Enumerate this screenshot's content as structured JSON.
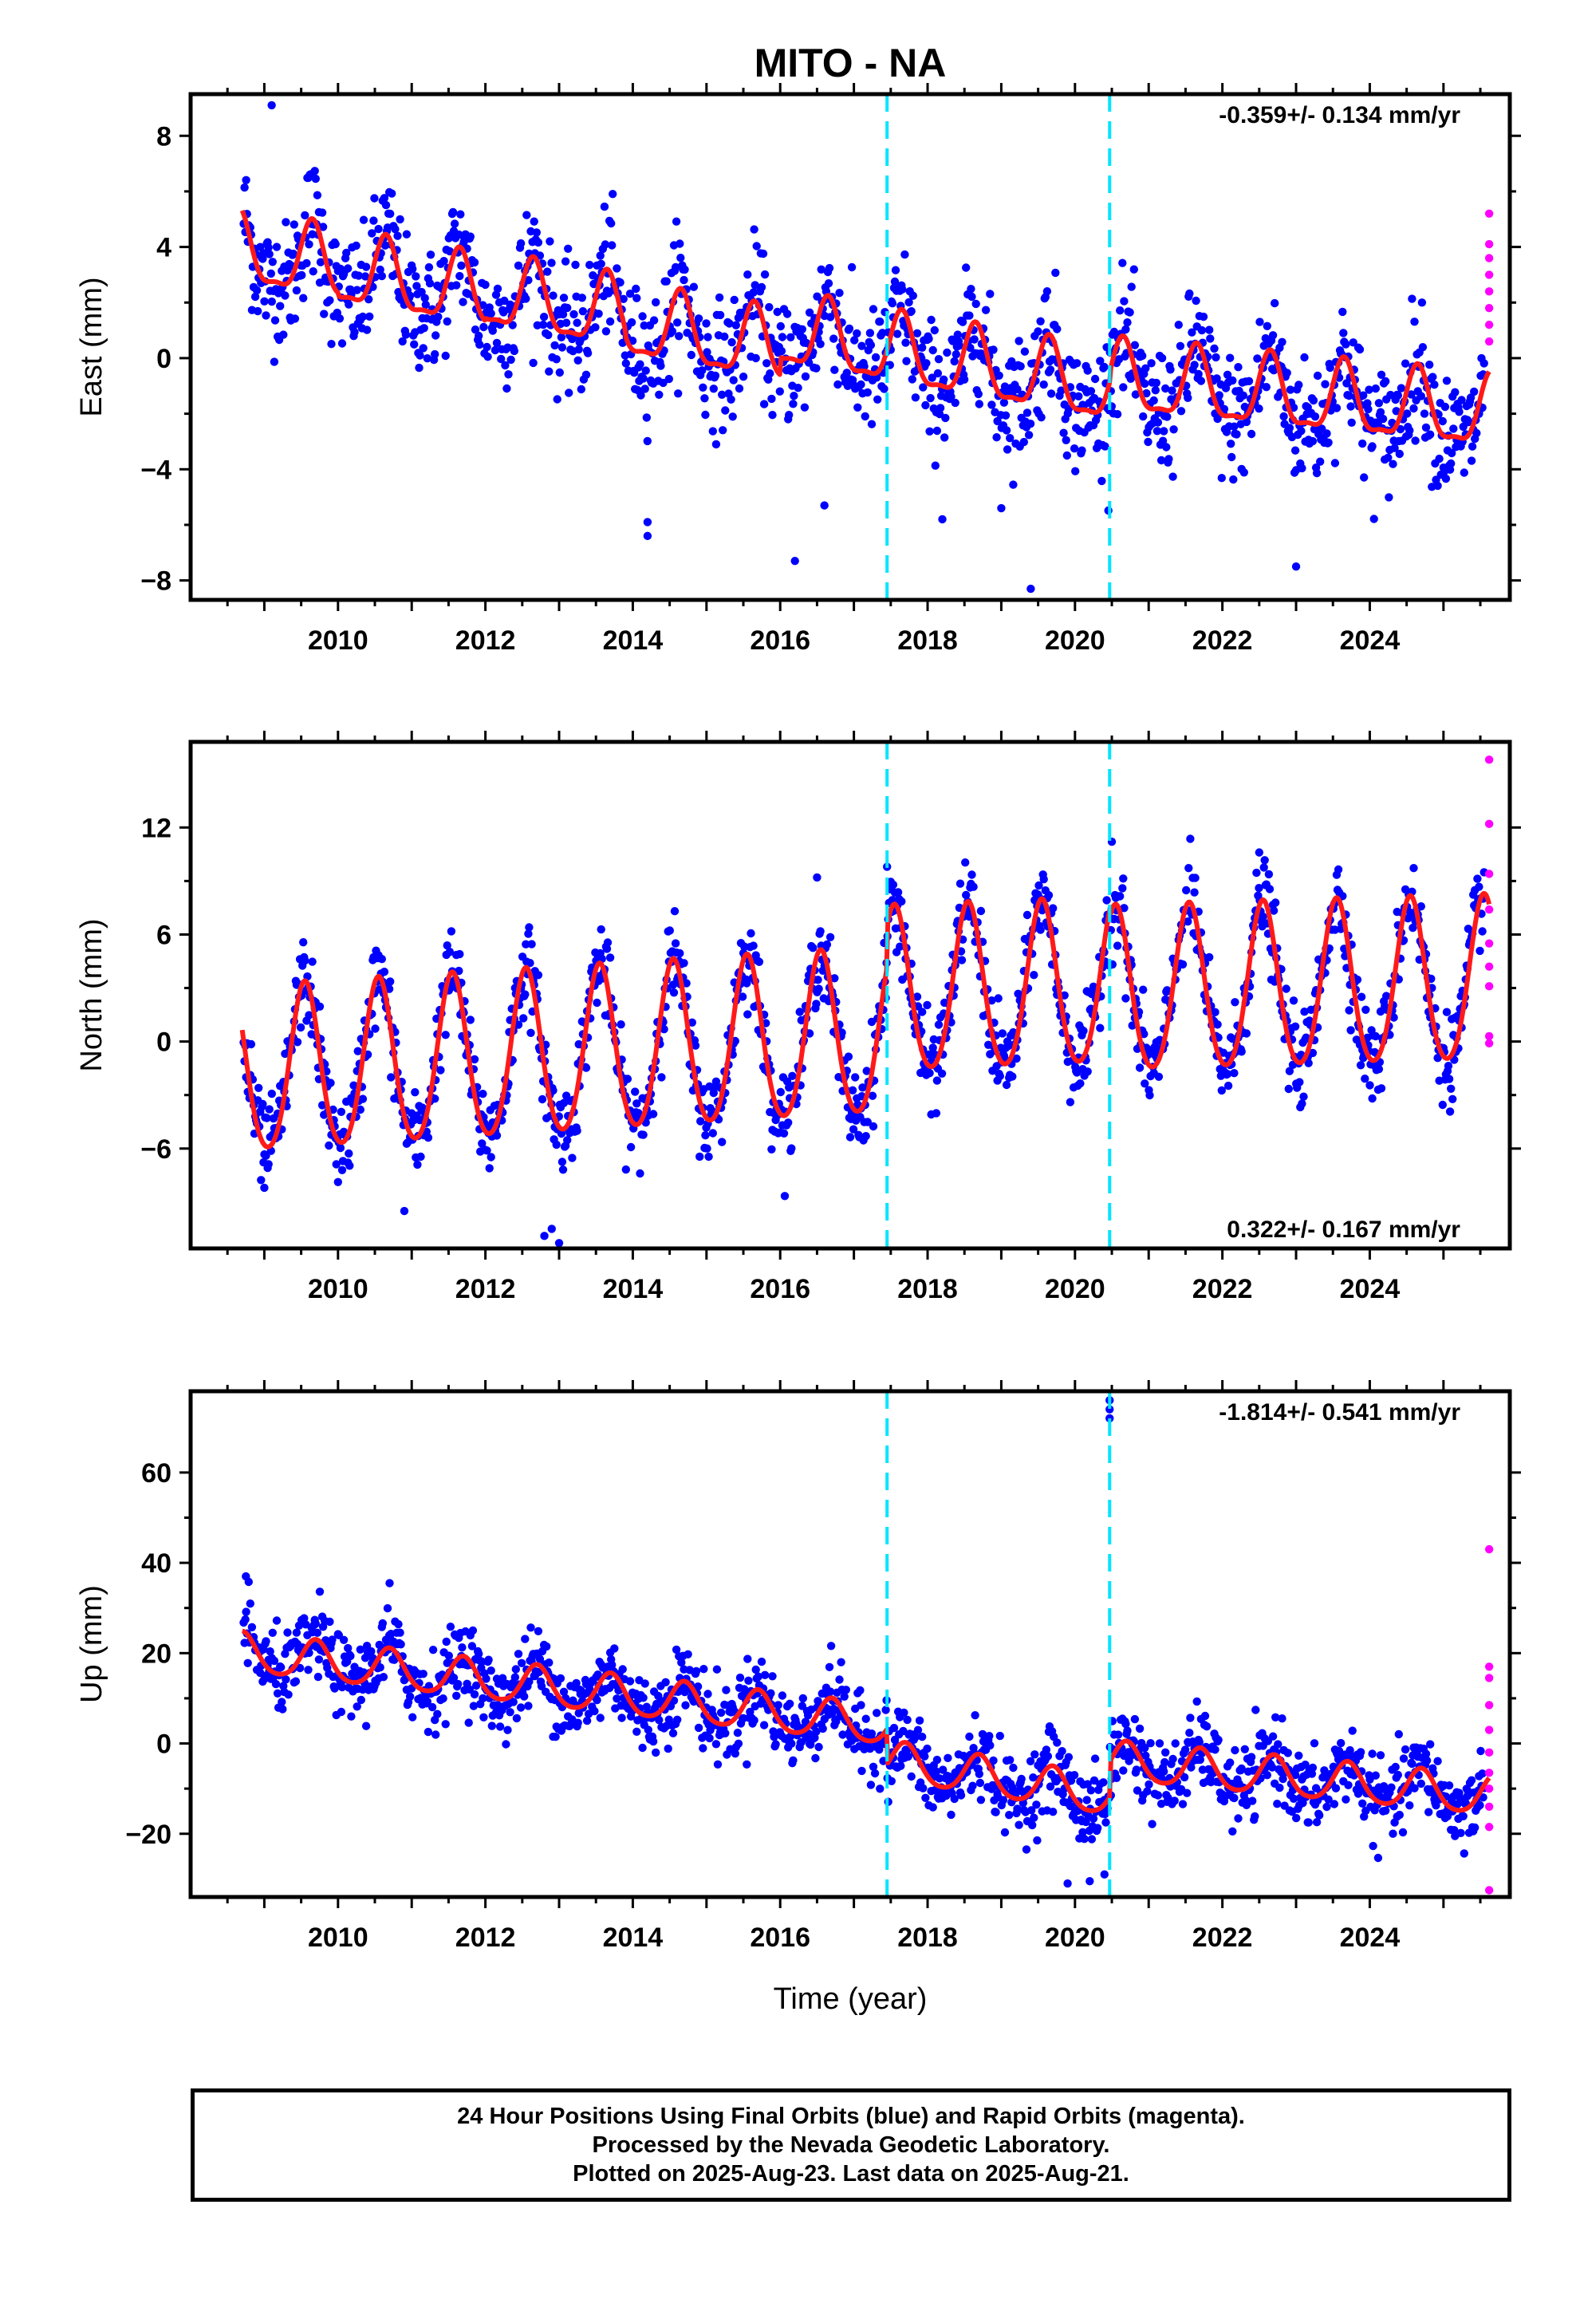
{
  "title": "MITO - NA",
  "colors": {
    "final": "#0000ff",
    "rapid": "#ff00ff",
    "model": "#ff1a1a",
    "event": "#00e5ff",
    "frame": "#000000"
  },
  "caption": {
    "line1": "24 Hour Positions Using Final Orbits (blue) and Rapid Orbits (magenta).",
    "line2": "Processed by the Nevada Geodetic Laboratory.",
    "line3": "Plotted on 2025-Aug-23. Last data on 2025-Aug-21."
  },
  "chart_data": [
    {
      "type": "scatter",
      "component": "East",
      "ylabel": "East (mm)",
      "xlabel": "",
      "xlim": [
        2008.0,
        2025.9
      ],
      "ylim": [
        -8.7,
        9.5
      ],
      "yticks": [
        -8,
        -4,
        0,
        4,
        8
      ],
      "yticklabels": [
        "−8",
        "−4",
        "0",
        "4",
        "8"
      ],
      "xticks": [
        2010,
        2012,
        2014,
        2016,
        2018,
        2020,
        2022,
        2024
      ],
      "rate_label": "-0.359+/- 0.134 mm/yr",
      "rate_position": "top-right",
      "events": [
        2017.45,
        2020.47
      ],
      "grid": false,
      "model": {
        "x_start": 2008.7,
        "x_end": 2025.62,
        "segments": [
          [
            2008.7,
            2010.0,
            3.8,
            -0.45
          ],
          [
            2010.0,
            2012.0,
            3.1,
            -0.45
          ],
          [
            2012.0,
            2013.9,
            2.3,
            -0.45
          ],
          [
            2013.9,
            2016.0,
            1.2,
            -0.45
          ],
          [
            2016.0,
            2017.45,
            0.9,
            -0.45
          ],
          [
            2017.45,
            2020.47,
            0.2,
            -0.45
          ],
          [
            2020.47,
            2025.62,
            -0.8,
            -0.25
          ]
        ],
        "annual_amp": 1.25,
        "semiannual_amp": 0.4,
        "annual_phase_peak": 0.65
      },
      "final_points": {
        "x_start": 2008.72,
        "x_end": 2025.55,
        "count": 1500,
        "scatter": 1.1,
        "outliers": [
          [
            2009.1,
            9.1
          ],
          [
            2014.2,
            -5.9
          ],
          [
            2014.2,
            -6.4
          ],
          [
            2016.2,
            -7.3
          ],
          [
            2019.4,
            -8.3
          ],
          [
            2023.0,
            -7.5
          ],
          [
            2019.0,
            -5.4
          ],
          [
            2016.6,
            -5.3
          ],
          [
            2018.2,
            -5.8
          ]
        ]
      },
      "rapid_points": [
        [
          2025.62,
          5.2
        ],
        [
          2025.62,
          4.1
        ],
        [
          2025.62,
          3.0
        ],
        [
          2025.62,
          2.4
        ],
        [
          2025.62,
          1.8
        ],
        [
          2025.62,
          1.2
        ],
        [
          2025.62,
          0.6
        ],
        [
          2025.62,
          3.6
        ]
      ]
    },
    {
      "type": "scatter",
      "component": "North",
      "ylabel": "North (mm)",
      "xlabel": "",
      "xlim": [
        2008.0,
        2025.9
      ],
      "ylim": [
        -11.6,
        16.8
      ],
      "yticks": [
        -6,
        0,
        6,
        12
      ],
      "yticklabels": [
        "−6",
        "0",
        "6",
        "12"
      ],
      "xticks": [
        2010,
        2012,
        2014,
        2016,
        2018,
        2020,
        2022,
        2024
      ],
      "rate_label": "0.322+/- 0.167 mm/yr",
      "rate_position": "bottom-right",
      "events": [
        2017.45,
        2020.47
      ],
      "grid": false,
      "model": {
        "x_start": 2008.7,
        "x_end": 2025.62,
        "segments": [
          [
            2008.7,
            2017.45,
            -1.9,
            0.25
          ],
          [
            2017.45,
            2020.47,
            2.6,
            0.15
          ],
          [
            2020.47,
            2025.62,
            2.6,
            0.12
          ]
        ],
        "annual_amp": 4.6,
        "semiannual_amp": 0.5,
        "annual_phase_peak": 0.55
      },
      "final_points": {
        "x_start": 2008.72,
        "x_end": 2025.55,
        "count": 1500,
        "scatter": 1.2,
        "outliers": [
          [
            2012.9,
            -10.5
          ],
          [
            2013.0,
            -11.3
          ],
          [
            2012.8,
            -10.9
          ],
          [
            2020.5,
            11.2
          ],
          [
            2017.45,
            9.8
          ],
          [
            2022.5,
            10.6
          ],
          [
            2009.0,
            -8.2
          ],
          [
            2010.9,
            -9.5
          ],
          [
            2016.5,
            9.2
          ]
        ]
      },
      "rapid_points": [
        [
          2025.62,
          15.8
        ],
        [
          2025.62,
          12.2
        ],
        [
          2025.62,
          9.4
        ],
        [
          2025.62,
          7.4
        ],
        [
          2025.62,
          5.5
        ],
        [
          2025.62,
          4.2
        ],
        [
          2025.62,
          0.3
        ],
        [
          2025.62,
          -0.1
        ],
        [
          2025.62,
          3.1
        ]
      ]
    },
    {
      "type": "scatter",
      "component": "Up",
      "ylabel": "Up (mm)",
      "xlabel": "Time (year)",
      "xlim": [
        2008.0,
        2025.9
      ],
      "ylim": [
        -34,
        78
      ],
      "yticks": [
        -20,
        0,
        20,
        40,
        60
      ],
      "yticklabels": [
        "−20",
        "0",
        "20",
        "40",
        "60"
      ],
      "xticks": [
        2010,
        2012,
        2014,
        2016,
        2018,
        2020,
        2022,
        2024
      ],
      "rate_label": "-1.814+/- 0.541 mm/yr",
      "rate_position": "top-right",
      "events": [
        2017.45,
        2020.47
      ],
      "grid": false,
      "model": {
        "x_start": 2008.7,
        "x_end": 2025.62,
        "segments": [
          [
            2008.7,
            2017.45,
            20.0,
            -1.85
          ],
          [
            2017.45,
            2020.47,
            -4.0,
            -2.6
          ],
          [
            2020.47,
            2025.62,
            -4.0,
            -1.5
          ]
        ],
        "annual_amp": 4.3,
        "semiannual_amp": 0.6,
        "annual_phase_peak": 0.7
      },
      "final_points": {
        "x_start": 2008.72,
        "x_end": 2025.55,
        "count": 1500,
        "scatter": 4.2,
        "outliers": [
          [
            2020.47,
            76.0
          ],
          [
            2020.47,
            74.0
          ],
          [
            2020.47,
            72.0
          ],
          [
            2008.75,
            37.0
          ],
          [
            2010.7,
            35.5
          ],
          [
            2019.9,
            -31.0
          ],
          [
            2020.2,
            -30.5
          ],
          [
            2020.4,
            -29.0
          ]
        ]
      },
      "rapid_points": [
        [
          2025.62,
          43.0
        ],
        [
          2025.62,
          17.0
        ],
        [
          2025.62,
          14.5
        ],
        [
          2025.62,
          8.5
        ],
        [
          2025.62,
          3.0
        ],
        [
          2025.62,
          -2.0
        ],
        [
          2025.62,
          -6.5
        ],
        [
          2025.62,
          -10.0
        ],
        [
          2025.62,
          -14.0
        ],
        [
          2025.62,
          -18.5
        ],
        [
          2025.62,
          -32.5
        ]
      ]
    }
  ]
}
